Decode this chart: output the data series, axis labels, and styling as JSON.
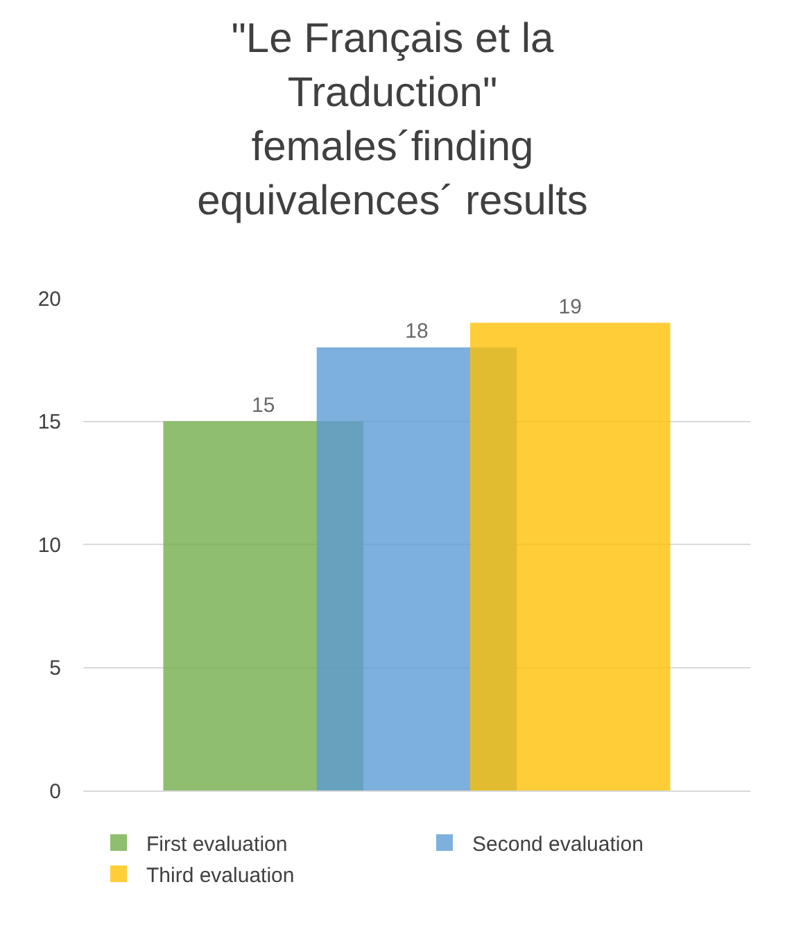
{
  "chart_data": {
    "type": "bar",
    "title": "\"Le Français et la Traduction\" females´finding equivalences´ results",
    "categories": [
      null
    ],
    "series": [
      {
        "name": "First evaluation",
        "color": "#70ad47",
        "values": [
          15
        ]
      },
      {
        "name": "Second evaluation",
        "color": "#5b9bd5",
        "values": [
          18
        ]
      },
      {
        "name": "Third evaluation",
        "color": "#ffc000",
        "values": [
          19
        ]
      }
    ],
    "ylim": [
      0,
      20
    ],
    "yticks": [
      0,
      5,
      10,
      15,
      20
    ],
    "grid": "y",
    "legend": "bottom",
    "data_labels": true
  }
}
